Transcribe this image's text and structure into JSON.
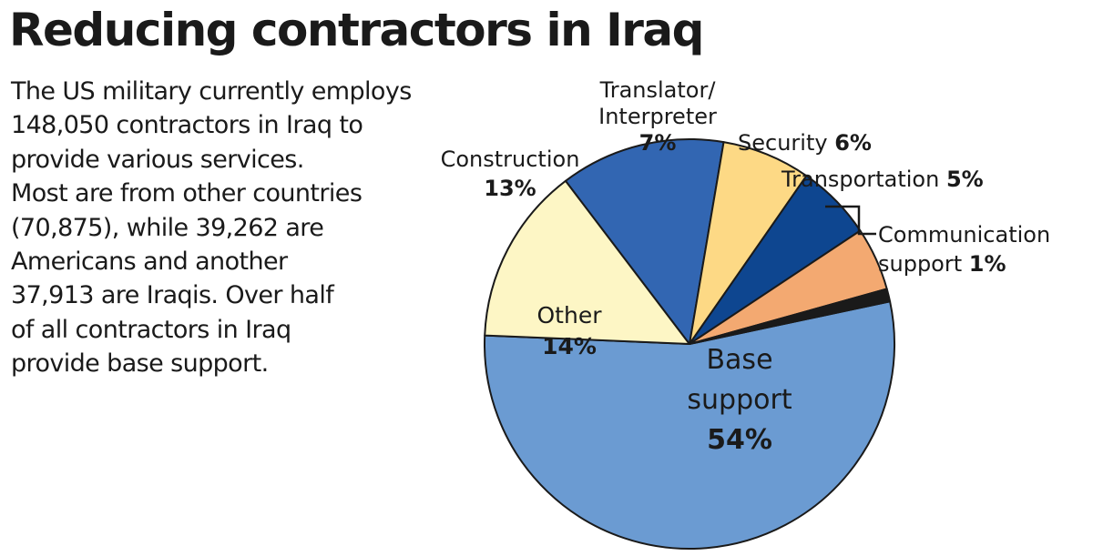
{
  "title": "Reducing contractors in Iraq",
  "intro_lines": [
    "The US military currently employs",
    "148,050 contractors in Iraq to",
    "provide various services.",
    "Most are from other countries",
    "(70,875), while 39,262 are",
    "Americans and another",
    "37,913 are Iraqis. Over half",
    "of all contractors in Iraq",
    "provide base support."
  ],
  "chart_data": {
    "type": "pie",
    "unit": "%",
    "slices": [
      {
        "label_lines": [
          "Base",
          "support"
        ],
        "value": 54,
        "color": "#6b9bd2",
        "label_color": "#ffffff"
      },
      {
        "label_lines": [
          "Other"
        ],
        "value": 14,
        "color": "#fdf6c5",
        "label_color": "#1a1a1a"
      },
      {
        "label_lines": [
          "Construction"
        ],
        "value": 13,
        "color": "#3266b2",
        "label_color": "#1a1a1a"
      },
      {
        "label_lines": [
          "Translator/",
          "Interpreter"
        ],
        "value": 7,
        "color": "#fdd985",
        "label_color": "#1a1a1a"
      },
      {
        "label_lines": [
          "Security"
        ],
        "value": 6,
        "color": "#0e4690",
        "label_color": "#1a1a1a"
      },
      {
        "label_lines": [
          "Transportation"
        ],
        "value": 5,
        "color": "#f3a971",
        "label_color": "#1a1a1a"
      },
      {
        "label_lines": [
          "Communication",
          "support"
        ],
        "value": 1,
        "color": "#1a1a1a",
        "label_color": "#1a1a1a"
      }
    ]
  }
}
